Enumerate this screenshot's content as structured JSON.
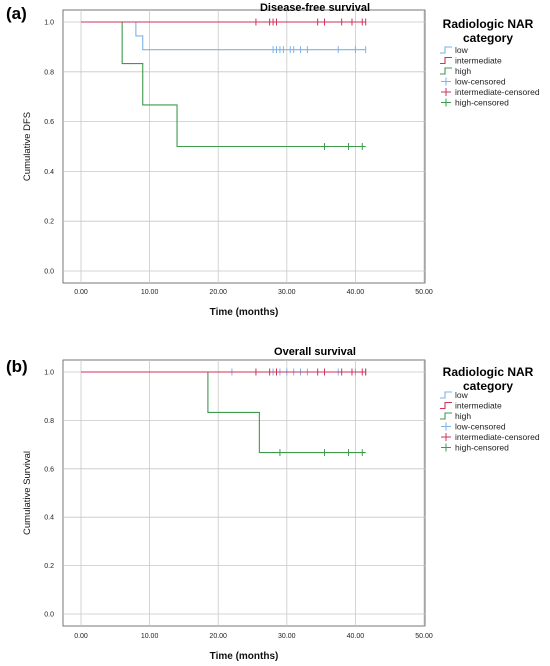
{
  "chart_data": [
    {
      "panel_label": "(a)",
      "type": "line",
      "title": "Disease-free survival",
      "xlabel": "Time (months)",
      "ylabel": "Cumulative DFS",
      "xlim": [
        0,
        50
      ],
      "ylim": [
        0,
        1
      ],
      "xticks": [
        "0.00",
        "10.00",
        "20.00",
        "30.00",
        "40.00",
        "50.00"
      ],
      "yticks": [
        "0.0",
        "0.2",
        "0.4",
        "0.6",
        "0.8",
        "1.0"
      ],
      "grid": true,
      "legend_position": "right",
      "legend_title": [
        "Radiologic NAR",
        "category"
      ],
      "legend": [
        "low",
        "intermediate",
        "high",
        "low-censored",
        "intermediate-censored",
        "high-censored"
      ],
      "series": [
        {
          "name": "low",
          "color": "#7fb2e5",
          "steps": [
            [
              0,
              1.0
            ],
            [
              8,
              0.944
            ],
            [
              9,
              0.889
            ],
            [
              41.5,
              0.889
            ]
          ],
          "censored": [
            28,
            28.5,
            29,
            29.5,
            30.5,
            31,
            32,
            33,
            37.5,
            40,
            41.5
          ]
        },
        {
          "name": "intermediate",
          "color": "#d1325a",
          "steps": [
            [
              0,
              1.0
            ],
            [
              41.5,
              1.0
            ]
          ],
          "censored": [
            25.5,
            27.5,
            28,
            28.5,
            34.5,
            35.5,
            38,
            39.5,
            41,
            41.5
          ]
        },
        {
          "name": "high",
          "color": "#3f9a4e",
          "steps": [
            [
              0,
              1.0
            ],
            [
              6,
              0.833
            ],
            [
              9,
              0.667
            ],
            [
              14,
              0.5
            ],
            [
              41.5,
              0.5
            ]
          ],
          "censored": [
            35.5,
            39,
            41
          ]
        }
      ]
    },
    {
      "panel_label": "(b)",
      "type": "line",
      "title": "Overall survival",
      "xlabel": "Time (months)",
      "ylabel": "Cumulative Survival",
      "xlim": [
        0,
        50
      ],
      "ylim": [
        0,
        1
      ],
      "xticks": [
        "0.00",
        "10.00",
        "20.00",
        "30.00",
        "40.00",
        "50.00"
      ],
      "yticks": [
        "0.0",
        "0.2",
        "0.4",
        "0.6",
        "0.8",
        "1.0"
      ],
      "grid": true,
      "legend_position": "right",
      "legend_title": [
        "Radiologic NAR",
        "category"
      ],
      "legend": [
        "low",
        "intermediate",
        "high",
        "low-censored",
        "intermediate-censored",
        "high-censored"
      ],
      "series": [
        {
          "name": "low",
          "color": "#7fb2e5",
          "steps": [
            [
              0,
              1.0
            ],
            [
              41.5,
              1.0
            ]
          ],
          "censored": [
            22,
            28,
            29,
            30,
            31,
            32,
            33,
            37.5,
            40,
            41.5
          ]
        },
        {
          "name": "intermediate",
          "color": "#d1325a",
          "steps": [
            [
              0,
              1.0
            ],
            [
              41.5,
              1.0
            ]
          ],
          "censored": [
            25.5,
            27.5,
            28.5,
            34.5,
            35.5,
            38,
            39.5,
            41,
            41.5
          ]
        },
        {
          "name": "high",
          "color": "#3f9a4e",
          "steps": [
            [
              0,
              1.0
            ],
            [
              18.5,
              0.833
            ],
            [
              26,
              0.667
            ],
            [
              41.5,
              0.667
            ]
          ],
          "censored": [
            29,
            35.5,
            39,
            41
          ]
        }
      ]
    }
  ]
}
